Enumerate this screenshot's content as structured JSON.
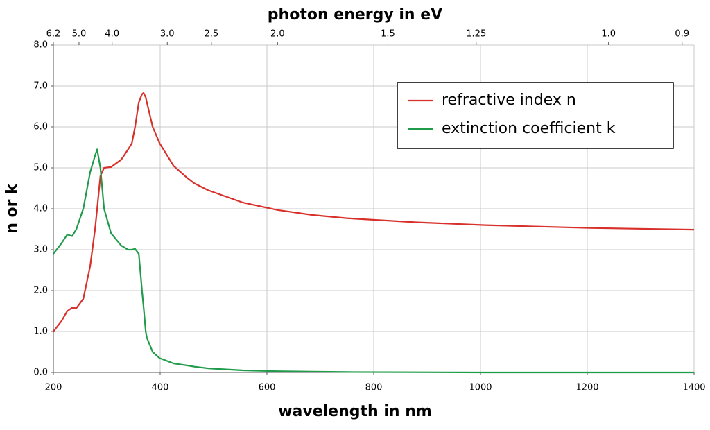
{
  "chart_data": {
    "type": "line",
    "title": "photon energy in eV",
    "x_label": "wavelength in nm",
    "y_label": "n or k",
    "x": [
      200,
      215,
      226,
      235,
      243,
      256,
      269,
      278,
      282,
      288,
      295,
      308,
      327,
      340,
      347,
      353,
      360,
      366,
      369,
      373,
      375,
      386,
      399,
      425,
      451,
      464,
      490,
      555,
      620,
      684,
      749,
      879,
      1009,
      1204,
      1400
    ],
    "series": [
      {
        "name": "refractive index n",
        "color": "#d8302a",
        "values": [
          1.0,
          1.25,
          1.5,
          1.58,
          1.57,
          1.8,
          2.6,
          3.5,
          4.0,
          4.8,
          5.0,
          5.02,
          5.2,
          5.45,
          5.6,
          6.0,
          6.6,
          6.8,
          6.83,
          6.72,
          6.6,
          6.0,
          5.6,
          5.05,
          4.75,
          4.62,
          4.45,
          4.15,
          3.97,
          3.85,
          3.77,
          3.67,
          3.6,
          3.53,
          3.49
        ]
      },
      {
        "name": "extinction coefficient k",
        "color": "#1f9b4a",
        "values": [
          2.9,
          3.15,
          3.37,
          3.33,
          3.5,
          4.0,
          4.9,
          5.3,
          5.45,
          5.0,
          4.0,
          3.4,
          3.1,
          3.0,
          3.0,
          3.02,
          2.9,
          2.0,
          1.6,
          1.0,
          0.85,
          0.5,
          0.35,
          0.22,
          0.17,
          0.14,
          0.1,
          0.05,
          0.03,
          0.02,
          0.01,
          0.005,
          0,
          0,
          0
        ]
      }
    ],
    "xlim": [
      200,
      1400
    ],
    "xticks": [
      200,
      400,
      600,
      800,
      1000,
      1200,
      1400
    ],
    "ylim": [
      0,
      8
    ],
    "yticks": [
      {
        "value": 0,
        "label": "0.0"
      },
      {
        "value": 1,
        "label": "1.0"
      },
      {
        "value": 2,
        "label": "2.0"
      },
      {
        "value": 3,
        "label": "3.0"
      },
      {
        "value": 4,
        "label": "4.0"
      },
      {
        "value": 5,
        "label": "5.0"
      },
      {
        "value": 6,
        "label": "6.0"
      },
      {
        "value": 7,
        "label": "7.0"
      },
      {
        "value": 8,
        "label": "8.0"
      }
    ],
    "x2ticks": [
      {
        "value": 200,
        "label": "6.2"
      },
      {
        "value": 248,
        "label": "5.0"
      },
      {
        "value": 310,
        "label": "4.0"
      },
      {
        "value": 413.3,
        "label": "3.0"
      },
      {
        "value": 495.9,
        "label": "2.5"
      },
      {
        "value": 619.9,
        "label": "2.0"
      },
      {
        "value": 826.6,
        "label": "1.5"
      },
      {
        "value": 991.9,
        "label": "1.25"
      },
      {
        "value": 1239.8,
        "label": "1.0"
      },
      {
        "value": 1377.6,
        "label": "0.9"
      }
    ],
    "grid": true,
    "legend": "upper right"
  }
}
